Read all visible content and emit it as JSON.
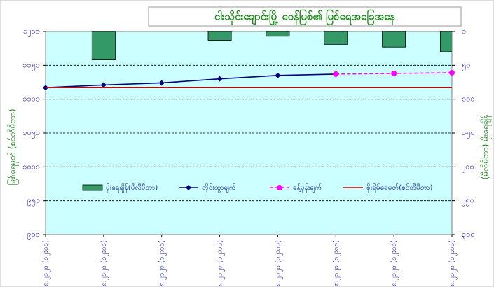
{
  "chart_data": {
    "type": "combo",
    "title": "ငါးသိုင်းချောင်းမြို့ ဝေန်မြစ်၏ မြစ်ရေအခြေအနေ",
    "y_label": "မြစ်ရေမှတ် (စင်တီမီတာ)",
    "y2_label": "(မီလီမီတာ) မိုးရေချိန်",
    "categories": [
      "၃.၈.၂၀၂၀ (၁၂:၀၀)",
      "၄.၈.၂၀၂၀ (၁၂:၀၀)",
      "၅.၈.၂၀၂၀ (၁၂:၀၀)",
      "၆.၈.၂၀၂၀ (၁၂:၀၀)",
      "၇.၈.၂၀၂၀ (၁၂:၀၀)",
      "၈.၈.၂၀၂၀ (၁၂:၀၀)",
      "၉.၈.၂၀၂၀ (၁၂:၀၀)",
      "၁၀.၈.၂၀၂၀ (၁၂:၀၀)"
    ],
    "series": [
      {
        "name": "မိုးရေချိန်(မီလီမီတာ)",
        "type": "bar",
        "axis": "y2",
        "color": "#339966",
        "values": [
          null,
          42,
          null,
          13,
          7,
          19,
          23,
          30
        ]
      },
      {
        "name": "တိုင်းထွာချက်",
        "type": "line",
        "marker": "diamond",
        "color": "#000080",
        "values": [
          1117,
          1121,
          1124,
          1130,
          1135,
          1137,
          null,
          null
        ]
      },
      {
        "name": "ခန့်မှန်းချက်",
        "type": "line",
        "marker": "circle",
        "dashed": true,
        "color": "#ff00ff",
        "values": [
          null,
          null,
          null,
          null,
          null,
          1137,
          1138,
          1139
        ]
      },
      {
        "name": "စိုးရိမ်ရေမှတ်(စင်တီမီတာ)",
        "type": "line",
        "color": "#cc0000",
        "values": [
          1117,
          1117,
          1117,
          1117,
          1117,
          1117,
          1117,
          1117
        ]
      }
    ],
    "ylim": [
      900,
      1200
    ],
    "yticks": [
      {
        "value": 900,
        "label": "၉၀၀"
      },
      {
        "value": 950,
        "label": "၉၅၀"
      },
      {
        "value": 1000,
        "label": "၁၀၀၀"
      },
      {
        "value": 1050,
        "label": "၁၀၅၀"
      },
      {
        "value": 1100,
        "label": "၁၁၀၀"
      },
      {
        "value": 1150,
        "label": "၁၁၅၀"
      },
      {
        "value": 1200,
        "label": "၁၂၀၀"
      }
    ],
    "y2lim": [
      300,
      0
    ],
    "y2ticks": [
      {
        "value": 0,
        "label": "၀"
      },
      {
        "value": 50,
        "label": "၅၀"
      },
      {
        "value": 100,
        "label": "၁၀၀"
      },
      {
        "value": 150,
        "label": "၁၅၀"
      },
      {
        "value": 200,
        "label": "၂၀၀"
      },
      {
        "value": 250,
        "label": "၂၅၀"
      },
      {
        "value": 300,
        "label": "၃၀၀"
      }
    ],
    "grid": true,
    "plot_color": "#ccffff"
  }
}
